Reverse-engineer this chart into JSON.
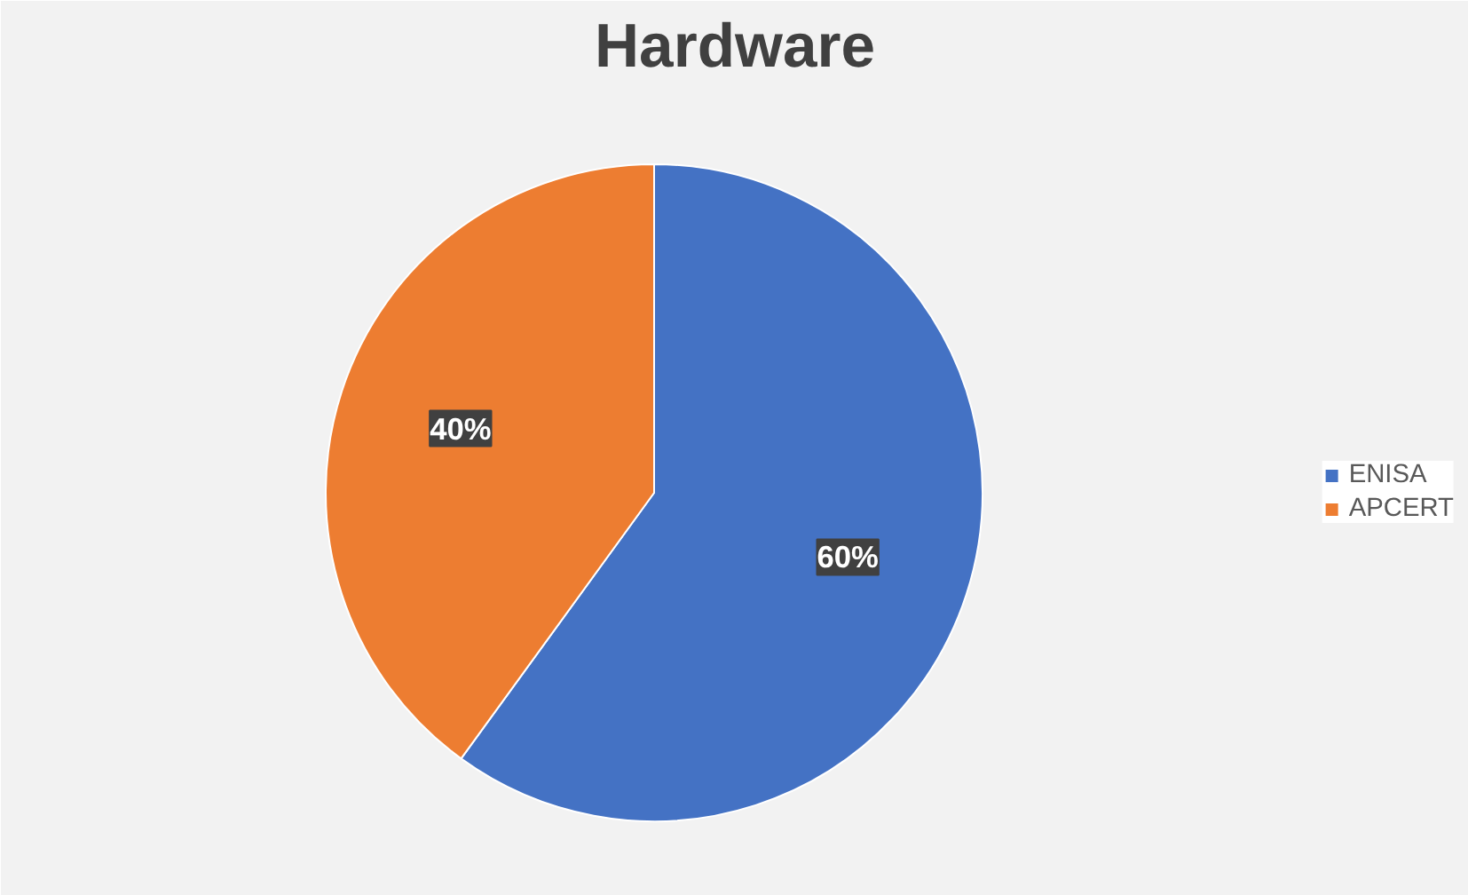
{
  "chart_data": {
    "type": "pie",
    "title": "Hardware",
    "categories": [
      "ENISA",
      "APCERT"
    ],
    "values": [
      60,
      40
    ],
    "colors": [
      "#4472c4",
      "#ed7d31"
    ],
    "value_labels": [
      "60%",
      "40%"
    ],
    "legend": "right"
  }
}
